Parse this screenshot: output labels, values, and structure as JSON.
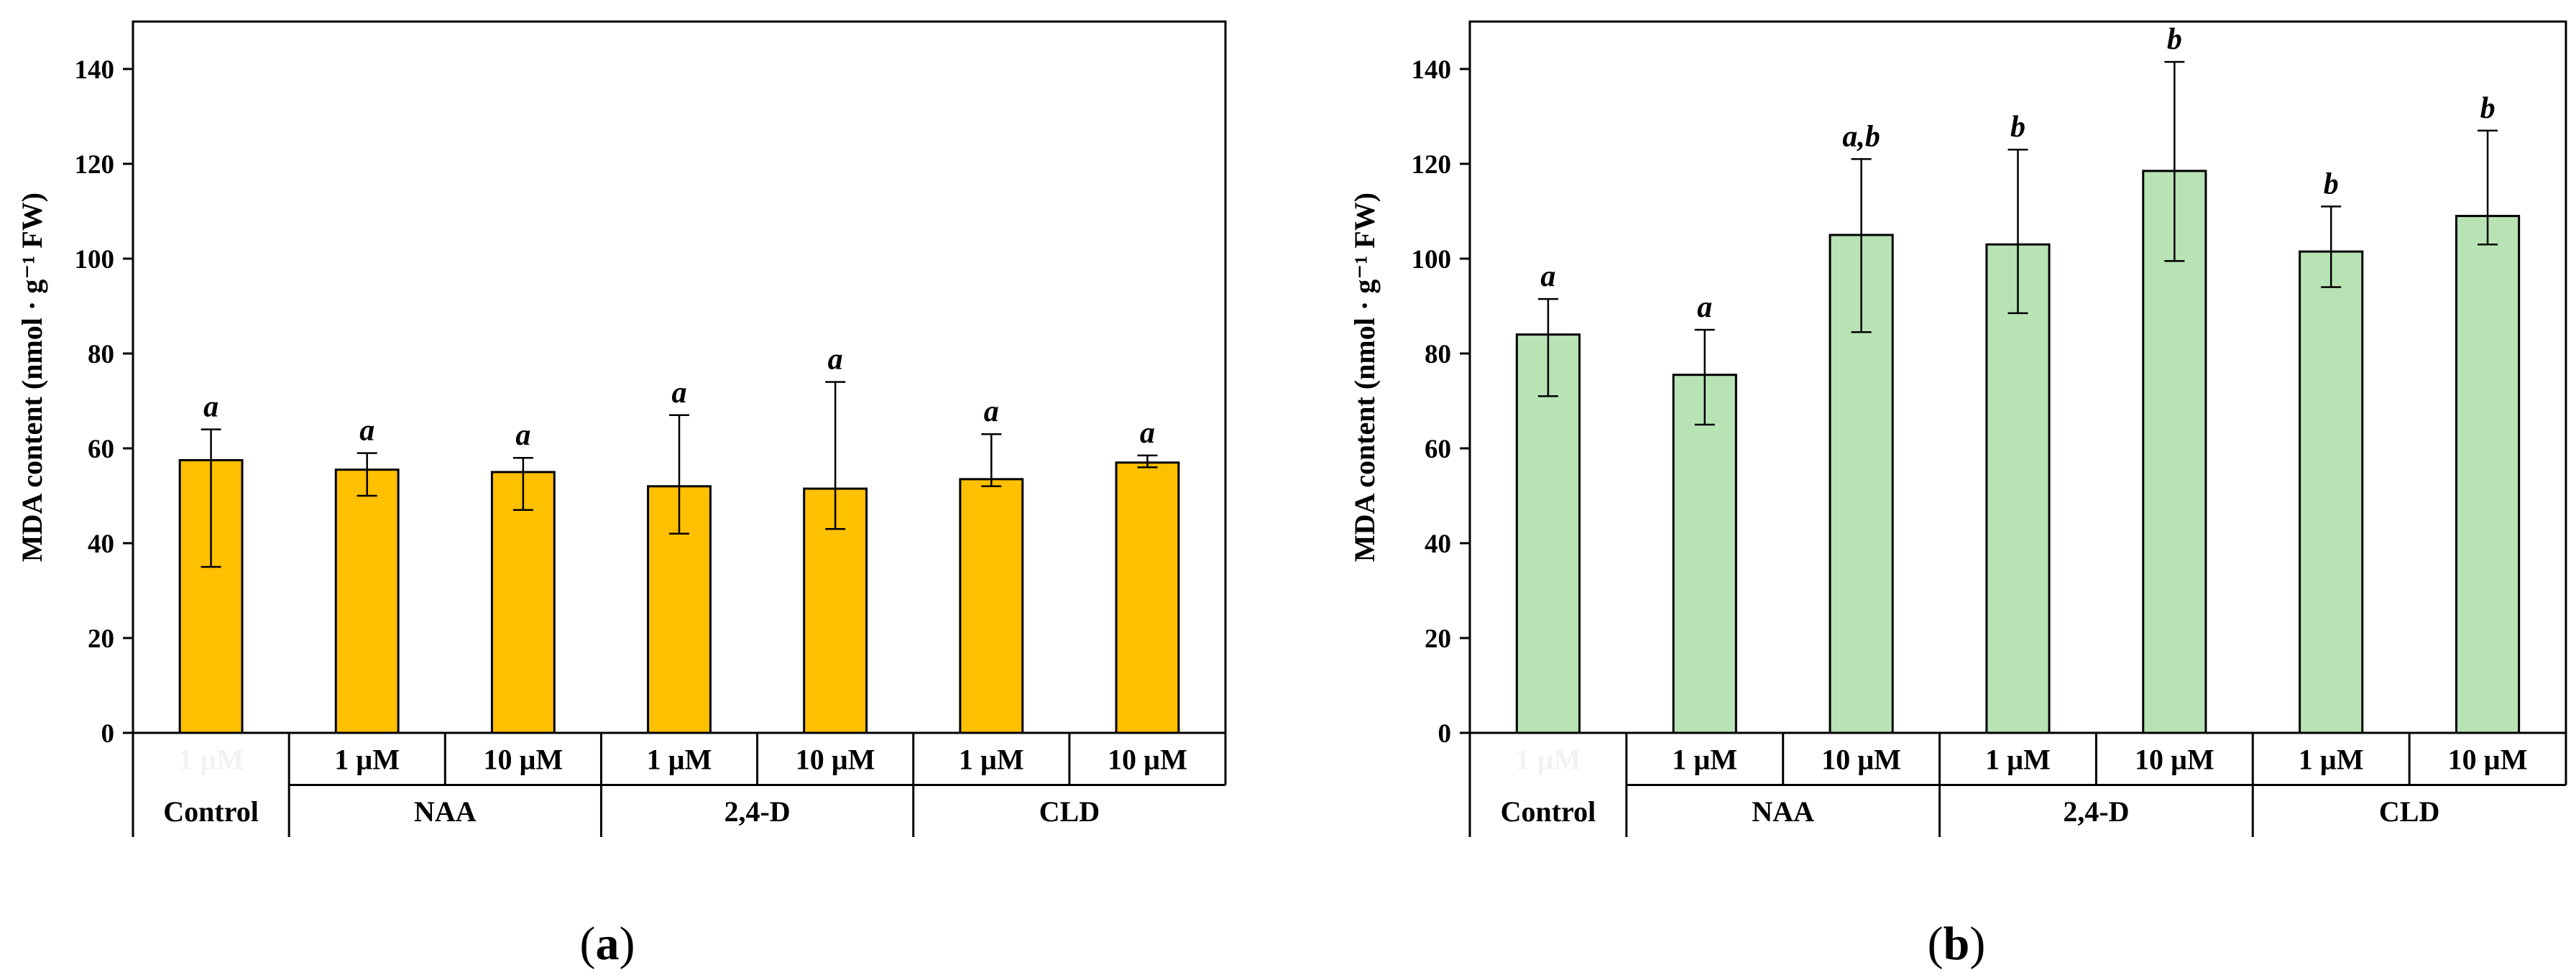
{
  "colors": {
    "panel_a_bar": "#FFC000",
    "panel_b_bar": "#B8E3B5",
    "bar_stroke": "#000000",
    "axis": "#000000"
  },
  "chart_data": [
    {
      "type": "bar",
      "panel": "a",
      "panel_label": "(a)",
      "panel_label_open": "(",
      "panel_label_letter": "a",
      "panel_label_close": ")",
      "ylabel": "MDA content (nmol · g⁻¹ FW)",
      "ylim": [
        0,
        150
      ],
      "yticks": [
        0,
        20,
        40,
        60,
        80,
        100,
        120,
        140
      ],
      "grid": false,
      "categories": [
        "1 µM",
        "1 µM",
        "10 µM",
        "1 µM",
        "10 µM",
        "1 µM",
        "10 µM"
      ],
      "groups": [
        {
          "label": "Control",
          "span": 1
        },
        {
          "label": "NAA",
          "span": 2
        },
        {
          "label": "2,4-D",
          "span": 2
        },
        {
          "label": "CLD",
          "span": 2
        }
      ],
      "values": [
        57.5,
        55.5,
        55,
        52,
        51.5,
        53.5,
        57
      ],
      "err_low": [
        35,
        50,
        47,
        42,
        43,
        52,
        56
      ],
      "err_high": [
        64,
        59,
        58,
        67,
        74,
        63,
        58.5
      ],
      "letters": [
        "a",
        "a",
        "a",
        "a",
        "a",
        "a",
        "a"
      ]
    },
    {
      "type": "bar",
      "panel": "b",
      "panel_label": "(b)",
      "panel_label_open": "(",
      "panel_label_letter": "b",
      "panel_label_close": ")",
      "ylabel": "MDA content (nmol · g⁻¹ FW)",
      "ylim": [
        0,
        150
      ],
      "yticks": [
        0,
        20,
        40,
        60,
        80,
        100,
        120,
        140
      ],
      "grid": false,
      "categories": [
        "1 µM",
        "1 µM",
        "10 µM",
        "1 µM",
        "10 µM",
        "1 µM",
        "10 µM"
      ],
      "groups": [
        {
          "label": "Control",
          "span": 1
        },
        {
          "label": "NAA",
          "span": 2
        },
        {
          "label": "2,4-D",
          "span": 2
        },
        {
          "label": "CLD",
          "span": 2
        }
      ],
      "values": [
        84,
        75.5,
        105,
        103,
        118.5,
        101.5,
        109
      ],
      "err_low": [
        71,
        65,
        84.5,
        88.5,
        99.5,
        94,
        103
      ],
      "err_high": [
        91.5,
        85,
        121,
        123,
        141.5,
        111,
        127
      ],
      "letters": [
        "a",
        "a",
        "a,b",
        "b",
        "b",
        "b",
        "b"
      ]
    }
  ]
}
